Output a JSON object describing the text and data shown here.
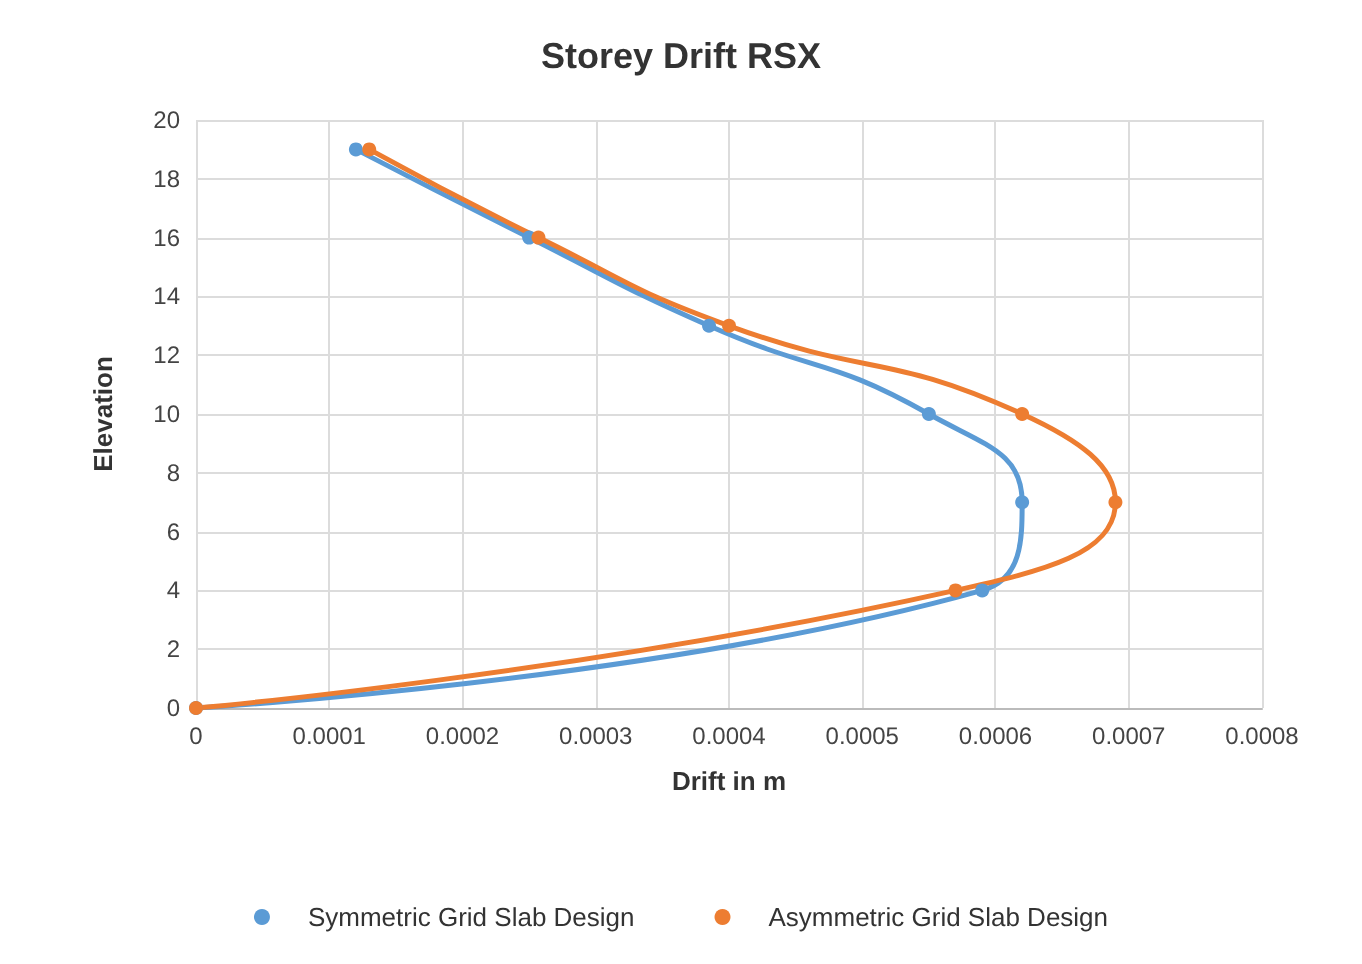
{
  "chart_data": {
    "type": "line",
    "title": "Storey Drift RSX",
    "xlabel": "Drift in m",
    "ylabel": "Elevation",
    "series": [
      {
        "name": "Symmetric Grid Slab Design",
        "color": "#5b9bd5",
        "x": [
          0,
          0.00059,
          0.00062,
          0.00055,
          0.000385,
          0.00025,
          0.00012
        ],
        "values": [
          0,
          4,
          7,
          10,
          13,
          16,
          19
        ]
      },
      {
        "name": "Asymmetric Grid Slab Design",
        "color": "#ed7d31",
        "x": [
          0,
          0.00057,
          0.00069,
          0.00062,
          0.0004,
          0.000257,
          0.00013
        ],
        "values": [
          0,
          4,
          7,
          10,
          13,
          16,
          19
        ]
      }
    ],
    "xlim": [
      0,
      0.0008
    ],
    "xticks": [
      0,
      0.0001,
      0.0002,
      0.0003,
      0.0004,
      0.0005,
      0.0006,
      0.0007,
      0.0008
    ],
    "ylim": [
      0,
      20
    ],
    "yticks": [
      0,
      2,
      4,
      6,
      8,
      10,
      12,
      14,
      16,
      18,
      20
    ],
    "grid": true,
    "legend": "bottom",
    "marker": "circle",
    "line_style": "solid"
  }
}
